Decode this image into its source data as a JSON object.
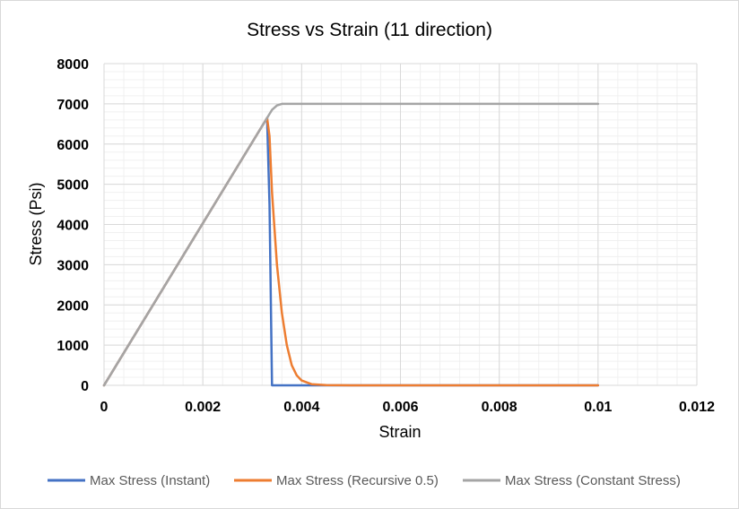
{
  "chart_data": {
    "type": "line",
    "title": "Stress vs Strain (11 direction)",
    "xlabel": "Strain",
    "ylabel": "Stress (Psi)",
    "xlim": [
      0,
      0.012
    ],
    "ylim": [
      0,
      8000
    ],
    "x_ticks": [
      0,
      0.002,
      0.004,
      0.006,
      0.008,
      0.01,
      0.012
    ],
    "x_tick_labels": [
      "0",
      "0.002",
      "0.004",
      "0.006",
      "0.008",
      "0.01",
      "0.012"
    ],
    "y_ticks": [
      0,
      1000,
      2000,
      3000,
      4000,
      5000,
      6000,
      7000,
      8000
    ],
    "y_tick_labels": [
      "0",
      "1000",
      "2000",
      "3000",
      "4000",
      "5000",
      "6000",
      "7000",
      "8000"
    ],
    "grid": true,
    "legend_position": "bottom",
    "series": [
      {
        "name": "Max Stress (Instant)",
        "color": "#4472C4",
        "x": [
          0,
          0.0033,
          0.00335,
          0.0034,
          0.01
        ],
        "y": [
          0,
          6650,
          4500,
          0,
          0
        ]
      },
      {
        "name": "Max Stress (Recursive 0.5)",
        "color": "#ED7D31",
        "x": [
          0,
          0.0033,
          0.00335,
          0.0034,
          0.0035,
          0.0036,
          0.0037,
          0.0038,
          0.0039,
          0.004,
          0.0042,
          0.0045,
          0.005,
          0.006,
          0.008,
          0.01
        ],
        "y": [
          0,
          6650,
          6200,
          4800,
          3000,
          1800,
          1000,
          500,
          250,
          120,
          30,
          5,
          0,
          0,
          0,
          0
        ]
      },
      {
        "name": "Max Stress (Constant Stress)",
        "color": "#A5A5A5",
        "x": [
          0,
          0.0033,
          0.0034,
          0.0035,
          0.0036,
          0.0037,
          0.005,
          0.008,
          0.01
        ],
        "y": [
          0,
          6650,
          6850,
          6960,
          7000,
          7000,
          7000,
          7000,
          7000
        ]
      }
    ]
  }
}
